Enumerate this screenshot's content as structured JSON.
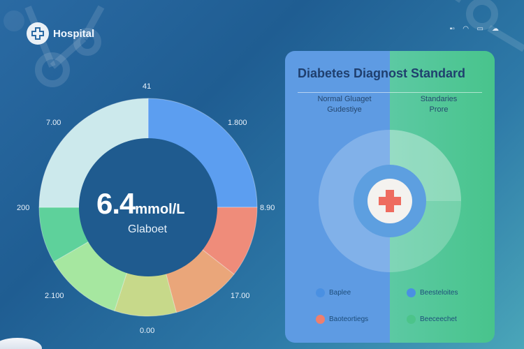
{
  "app": {
    "brand": "Hospital",
    "status_icons": [
      "signal-icon",
      "wifi-icon",
      "battery-icon",
      "cloud-icon"
    ]
  },
  "gauge": {
    "value": "6.4",
    "unit": "mmol/L",
    "label": "Glaboet",
    "ticks": {
      "top": "41",
      "top_left": "7.00",
      "top_right": "1.800",
      "left": "200",
      "right": "8.90",
      "bottom_left": "2.100",
      "bottom_right": "17.00",
      "bottom": "0.00"
    },
    "colors": {
      "light_teal": "#cce9ec",
      "blue": "#5c9ef0",
      "coral": "#ef8c7a",
      "orange": "#eaa67a",
      "yellow_green": "#c7d98a",
      "light_green": "#a6e7a0",
      "green": "#5ed19b",
      "mint": "#5cc9a3",
      "inner": "#1f5b8f"
    }
  },
  "panel": {
    "title": "Diabetes Diagnost Standard",
    "col_left": [
      "Normal Gluaget",
      "Gudestiye"
    ],
    "col_right": [
      "Standaries",
      "Prore"
    ],
    "legend": [
      {
        "label": "Baplee",
        "color": "#4a90e2"
      },
      {
        "label": "Beesteloites",
        "color": "#4a90e2"
      },
      {
        "label": "Baoteortiegs",
        "color": "#ee7f6e"
      },
      {
        "label": "Beeceechet",
        "color": "#4cc48a"
      }
    ]
  }
}
